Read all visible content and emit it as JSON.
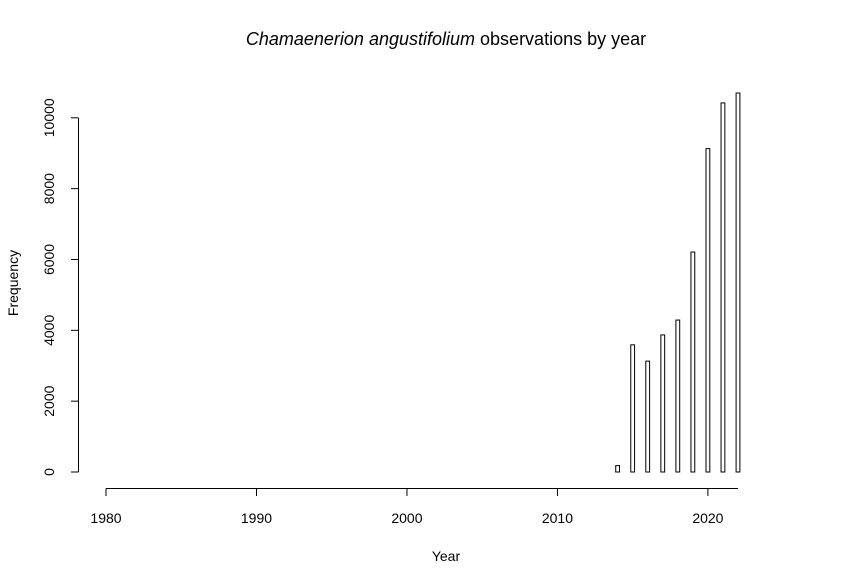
{
  "chart_data": {
    "type": "bar",
    "title_italic": "Chamaenerion angustifolium",
    "title_rest": "observations by year",
    "xlabel": "Year",
    "ylabel": "Frequency",
    "x_ticks": [
      1980,
      1990,
      2000,
      2010,
      2020
    ],
    "y_ticks": [
      0,
      2000,
      4000,
      6000,
      8000,
      10000
    ],
    "xlim": [
      1980,
      2022
    ],
    "ylim": [
      0,
      10700
    ],
    "categories": [
      2014,
      2015,
      2016,
      2017,
      2018,
      2019,
      2020,
      2021,
      2022
    ],
    "values": [
      180,
      3590,
      3130,
      3870,
      4290,
      6210,
      9130,
      10420,
      10700
    ],
    "bar_fill": "#ffffff",
    "bar_stroke": "#000000",
    "grid": false
  }
}
